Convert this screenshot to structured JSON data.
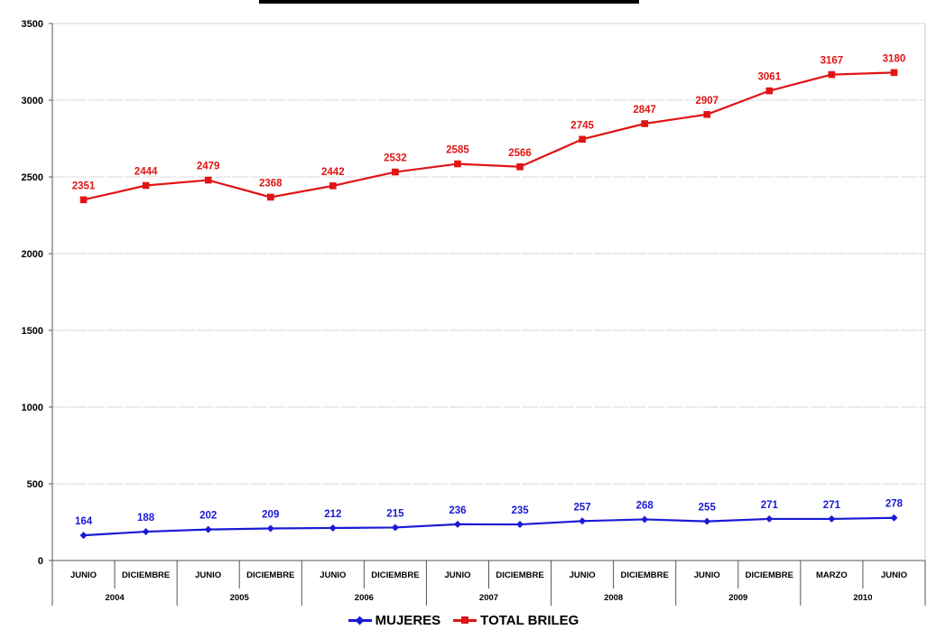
{
  "chart_data": {
    "type": "line",
    "title": "",
    "xlabel": "",
    "ylabel": "",
    "ylim": [
      0,
      3500
    ],
    "yticks": [
      "0",
      "500",
      "1000",
      "1500",
      "2000",
      "2500",
      "3000",
      "3500"
    ],
    "grid": true,
    "legend_position": "bottom",
    "categories": [
      "JUNIO",
      "DICIEMBRE",
      "JUNIO",
      "DICIEMBRE",
      "JUNIO",
      "DICIEMBRE",
      "JUNIO",
      "DICIEMBRE",
      "JUNIO",
      "DICIEMBRE",
      "JUNIO",
      "DICIEMBRE",
      "MARZO",
      "JUNIO"
    ],
    "year_groups": [
      {
        "label": "2004",
        "span": 2
      },
      {
        "label": "2005",
        "span": 2
      },
      {
        "label": "2006",
        "span": 2
      },
      {
        "label": "2007",
        "span": 2
      },
      {
        "label": "2008",
        "span": 2
      },
      {
        "label": "2009",
        "span": 2
      },
      {
        "label": "2010",
        "span": 2
      }
    ],
    "series": [
      {
        "name": "MUJERES",
        "color": "#1a1ad6",
        "marker": "diamond",
        "values": [
          164,
          188,
          202,
          209,
          212,
          215,
          236,
          235,
          257,
          268,
          255,
          271,
          271,
          278
        ]
      },
      {
        "name": "TOTAL BRILEG",
        "color": "#e01414",
        "marker": "square",
        "values": [
          2351,
          2444,
          2479,
          2368,
          2442,
          2532,
          2585,
          2566,
          2745,
          2847,
          2907,
          3061,
          3167,
          3180
        ]
      }
    ]
  }
}
